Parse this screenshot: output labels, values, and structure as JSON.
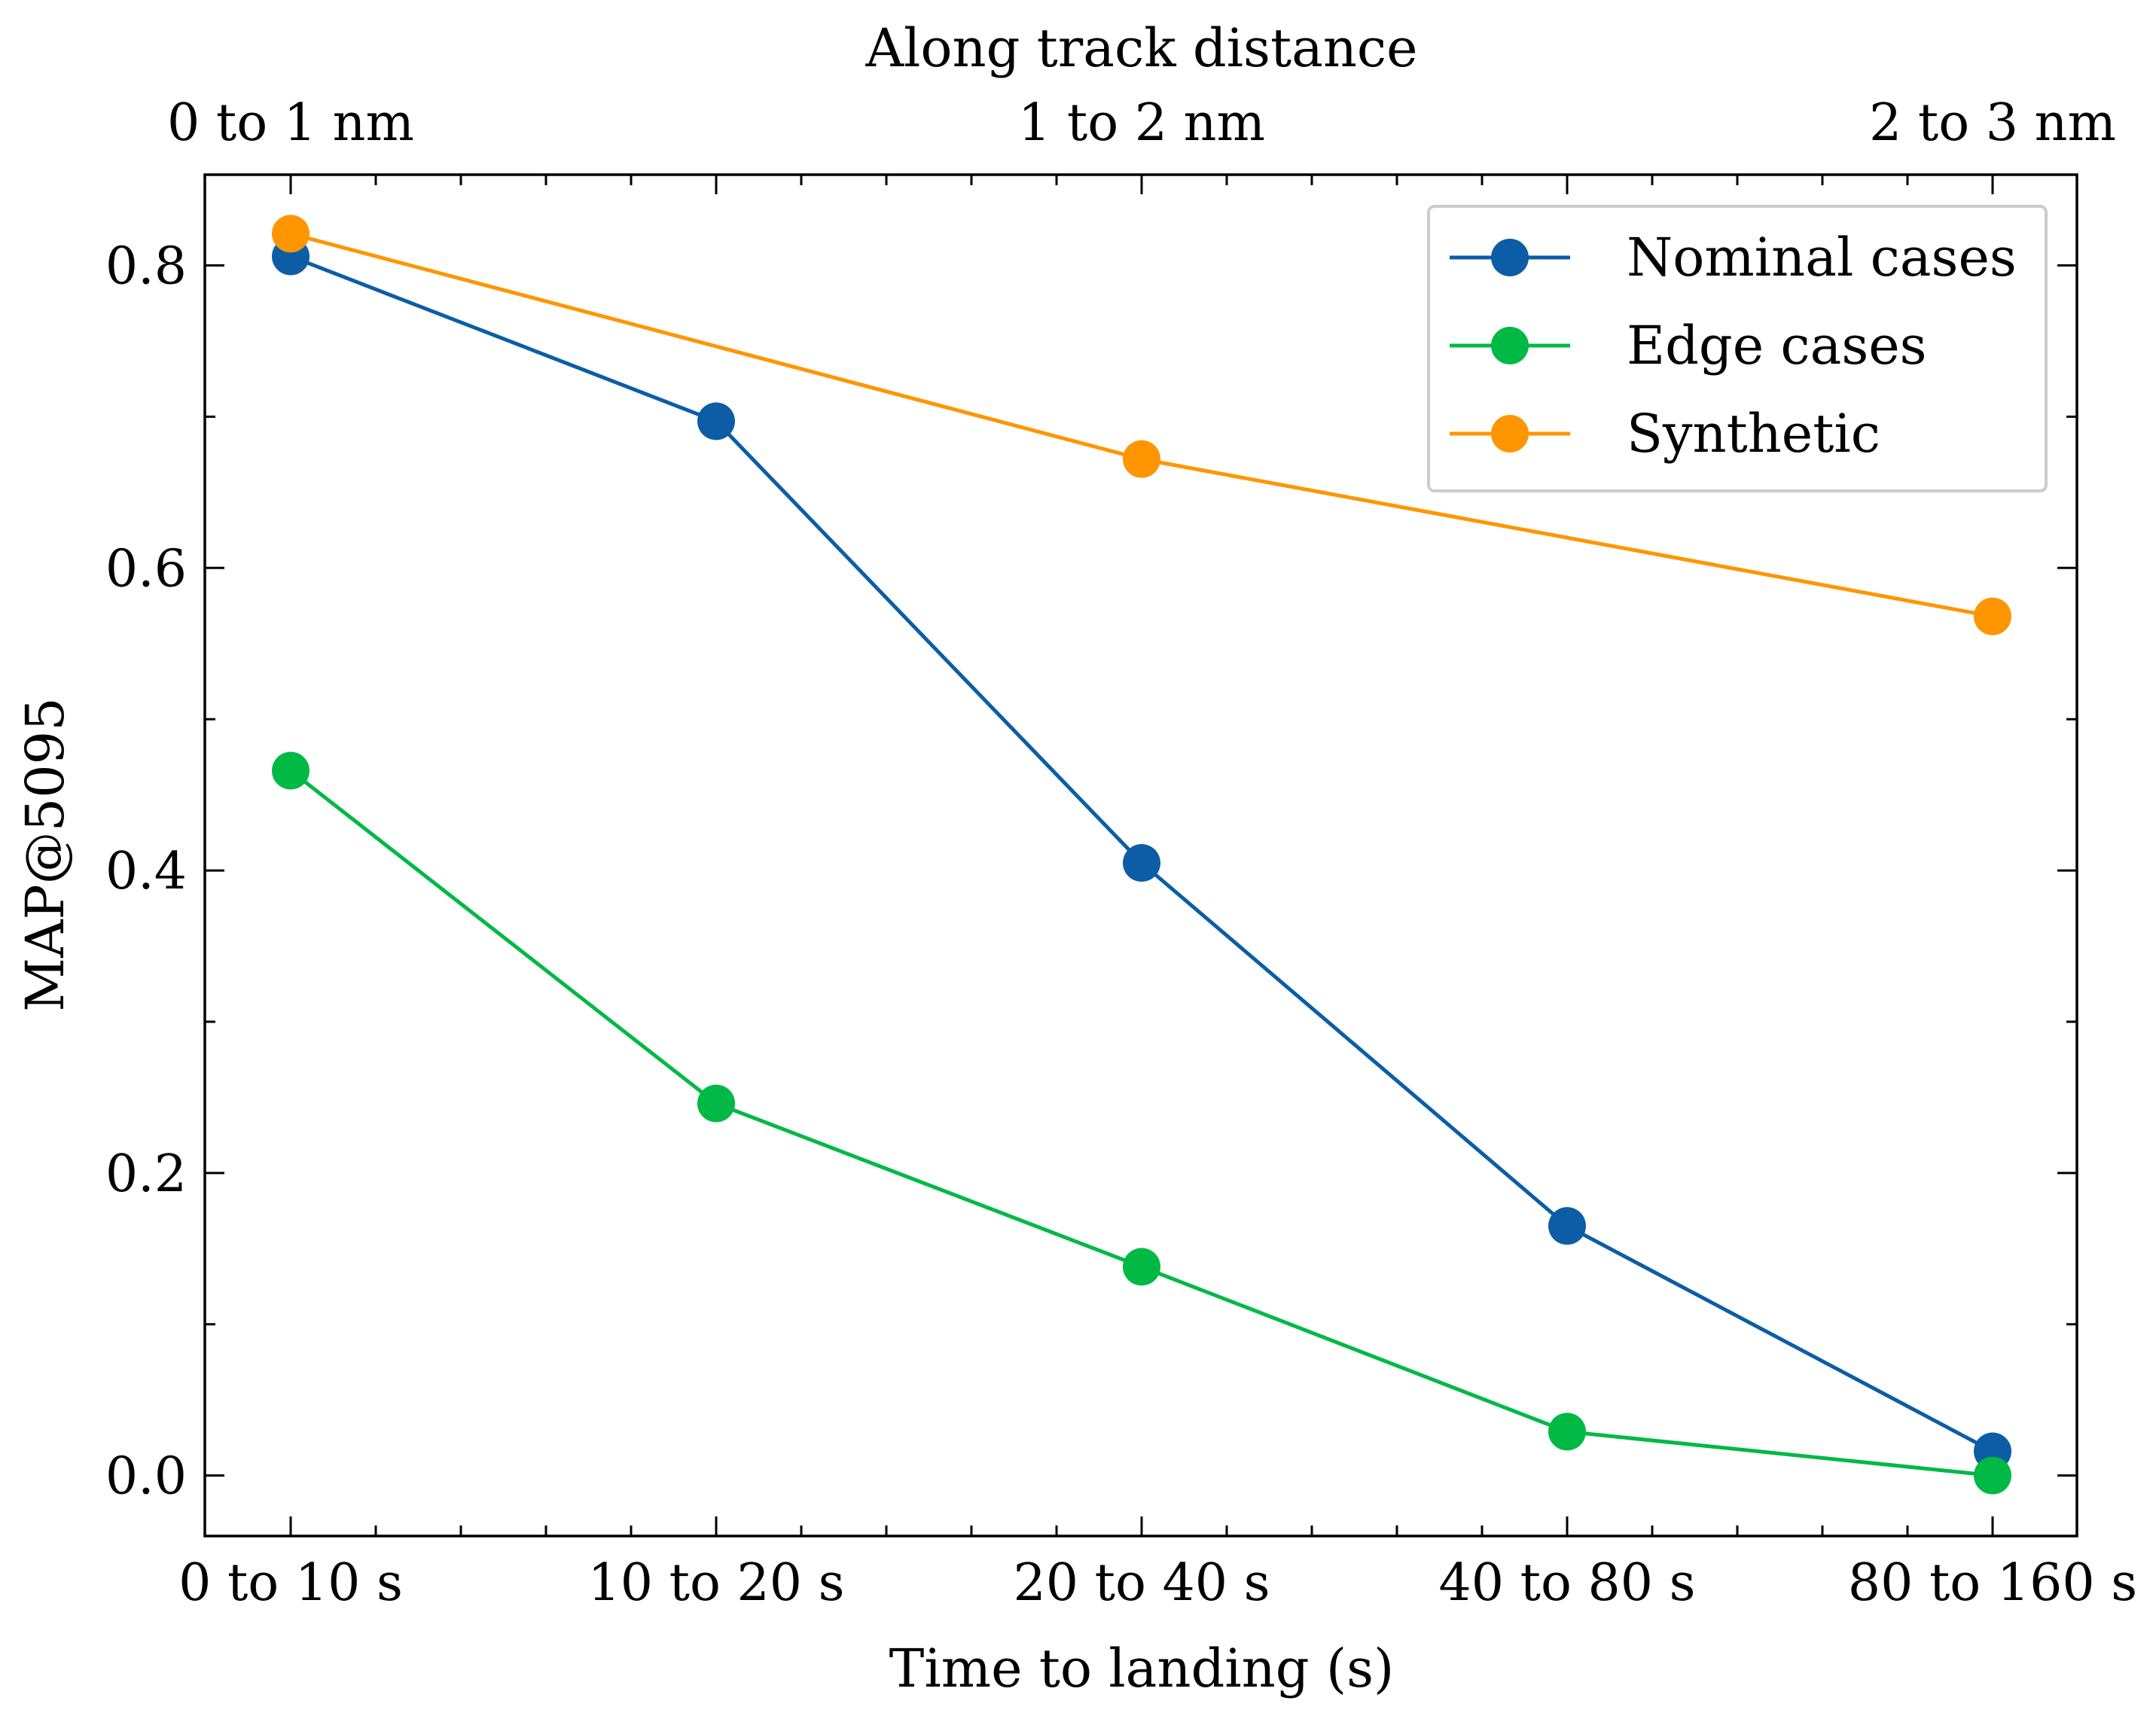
{
  "chart_data": {
    "type": "line",
    "xlabel": "Time to landing (s)",
    "ylabel": "MAP@5095",
    "top_xlabel": "Along track distance",
    "categories": [
      "0 to 10 s",
      "10 to 20 s",
      "20 to 40 s",
      "40 to 80 s",
      "80 to 160 s"
    ],
    "top_tick_labels": [
      "0 to 1 nm",
      "1 to 2 nm",
      "2 to 3 nm"
    ],
    "top_tick_categories": [
      0,
      2,
      4
    ],
    "ylim": [
      -0.04,
      0.86
    ],
    "yticks": [
      0.0,
      0.2,
      0.4,
      0.6,
      0.8
    ],
    "ytick_labels": [
      "0.0",
      "0.2",
      "0.4",
      "0.6",
      "0.8"
    ],
    "legend_position": "top-right",
    "grid": false,
    "series": [
      {
        "name": "Nominal cases",
        "color": "#0C5DA5",
        "x": [
          0,
          1,
          2,
          3,
          4
        ],
        "values": [
          0.806,
          0.697,
          0.405,
          0.165,
          0.016
        ]
      },
      {
        "name": "Edge cases",
        "color": "#00B945",
        "x": [
          0,
          1,
          2,
          3,
          4
        ],
        "values": [
          0.466,
          0.246,
          0.138,
          0.029,
          0.0
        ]
      },
      {
        "name": "Synthetic",
        "color": "#FF9500",
        "x": [
          0,
          2,
          4
        ],
        "values": [
          0.821,
          0.672,
          0.568
        ]
      }
    ]
  }
}
